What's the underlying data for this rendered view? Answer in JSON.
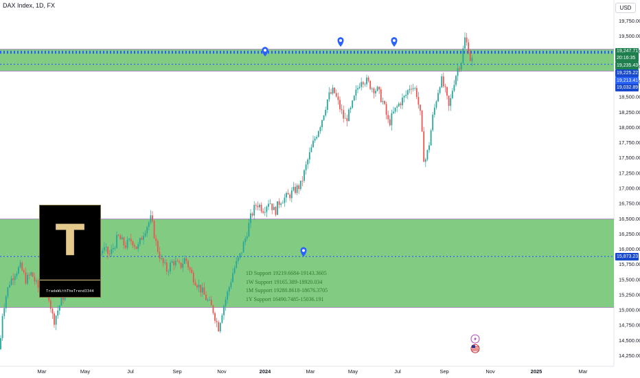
{
  "header": {
    "title": "DAX Index, 1D, FX",
    "currency": "USD"
  },
  "logo": {
    "letter": "T",
    "handle": "TradeWithTheTrend3344"
  },
  "support_notes": [
    "1D Support 19219.6684-19143.3605",
    "1W Support 19165.389-18920.034",
    "1M Support 19280.8618-18676.3705",
    "1Y Support 16490.7485-15036.191"
  ],
  "colors": {
    "zone_fill": "#6cc26c",
    "zone_border": "#a98bbd",
    "level_line": "#2962ff",
    "candle_up": "#26a69a",
    "candle_down": "#ef5350",
    "marker": "#2962ff",
    "tag_green": "#1e7e4e",
    "tag_blue": "#2962ff",
    "tag_navy": "#1848cc"
  },
  "chart_data": {
    "type": "candlestick",
    "title": "DAX Index, 1D, FX",
    "xlabel": "",
    "ylabel": "",
    "ylim": [
      14050,
      19900
    ],
    "x_ticks": [
      "Mar",
      "May",
      "Jul",
      "Sep",
      "Nov",
      "2024",
      "Mar",
      "May",
      "Jul",
      "Sep",
      "Nov",
      "2025",
      "Mar"
    ],
    "y_ticks": [
      14250,
      14500,
      14750,
      15000,
      15250,
      15500,
      15750,
      16000,
      16250,
      16500,
      16750,
      17000,
      17250,
      17500,
      17750,
      18000,
      18250,
      18500,
      18750,
      19000,
      19250,
      19500,
      19750
    ],
    "grid": false,
    "zones": [
      {
        "low": 18920,
        "high": 19280
      },
      {
        "low": 15036,
        "high": 16490
      }
    ],
    "levels": [
      19247.71,
      19235.43,
      19225.22,
      19213.41,
      19032.89,
      15873.23
    ],
    "price_tags": [
      {
        "label": "19,247.71",
        "sub": "20:16:35",
        "value": 19247.71,
        "color": "tag_green"
      },
      {
        "label": "19,235.43",
        "value": 19235.43,
        "color": "tag_green"
      },
      {
        "label": "19,225.22",
        "value": 19225.22,
        "color": "tag_navy"
      },
      {
        "label": "19,213.41",
        "value": 19213.41,
        "color": "tag_blue"
      },
      {
        "label": "19,032.89",
        "value": 19032.89,
        "color": "tag_navy"
      },
      {
        "label": "15,873.23",
        "value": 15873.23,
        "color": "tag_navy"
      }
    ],
    "path": [
      [
        0,
        14350
      ],
      [
        3,
        14900
      ],
      [
        8,
        15200
      ],
      [
        14,
        15450
      ],
      [
        22,
        15620
      ],
      [
        30,
        15700
      ],
      [
        38,
        15480
      ],
      [
        46,
        15600
      ],
      [
        55,
        15350
      ],
      [
        62,
        15500
      ],
      [
        70,
        15300
      ],
      [
        78,
        14800
      ],
      [
        86,
        15050
      ],
      [
        95,
        15300
      ],
      [
        103,
        15550
      ],
      [
        112,
        15800
      ],
      [
        120,
        15650
      ],
      [
        130,
        15900
      ],
      [
        140,
        15800
      ],
      [
        150,
        16000
      ],
      [
        160,
        15900
      ],
      [
        172,
        16200
      ],
      [
        182,
        16050
      ],
      [
        192,
        16150
      ],
      [
        200,
        16000
      ],
      [
        210,
        16300
      ],
      [
        220,
        16500
      ],
      [
        228,
        16050
      ],
      [
        235,
        15800
      ],
      [
        243,
        15650
      ],
      [
        252,
        15800
      ],
      [
        262,
        15700
      ],
      [
        270,
        15850
      ],
      [
        278,
        15600
      ],
      [
        286,
        15450
      ],
      [
        294,
        15300
      ],
      [
        302,
        15150
      ],
      [
        310,
        15000
      ],
      [
        318,
        14700
      ],
      [
        324,
        15000
      ],
      [
        332,
        15300
      ],
      [
        340,
        15650
      ],
      [
        350,
        15900
      ],
      [
        358,
        16200
      ],
      [
        366,
        16550
      ],
      [
        374,
        16750
      ],
      [
        384,
        16650
      ],
      [
        392,
        16800
      ],
      [
        400,
        16600
      ],
      [
        408,
        16800
      ],
      [
        418,
        16850
      ],
      [
        428,
        16950
      ],
      [
        438,
        17050
      ],
      [
        448,
        17450
      ],
      [
        458,
        17800
      ],
      [
        468,
        18100
      ],
      [
        478,
        18500
      ],
      [
        486,
        18600
      ],
      [
        494,
        18350
      ],
      [
        502,
        18100
      ],
      [
        510,
        18250
      ],
      [
        518,
        18550
      ],
      [
        526,
        18800
      ],
      [
        534,
        18750
      ],
      [
        542,
        18650
      ],
      [
        550,
        18600
      ],
      [
        558,
        18400
      ],
      [
        566,
        18050
      ],
      [
        574,
        18250
      ],
      [
        582,
        18400
      ],
      [
        590,
        18500
      ],
      [
        598,
        18700
      ],
      [
        606,
        18600
      ],
      [
        612,
        18200
      ],
      [
        618,
        17400
      ],
      [
        624,
        17650
      ],
      [
        630,
        18150
      ],
      [
        636,
        18500
      ],
      [
        642,
        18800
      ],
      [
        648,
        18600
      ],
      [
        654,
        18300
      ],
      [
        660,
        18700
      ],
      [
        666,
        18950
      ],
      [
        672,
        19100
      ],
      [
        677,
        19450
      ],
      [
        682,
        19300
      ],
      [
        686,
        19050
      ],
      [
        690,
        19200
      ]
    ],
    "markers": [
      {
        "x": 386,
        "value": 19240
      },
      {
        "x": 496,
        "value": 19400
      },
      {
        "x": 574,
        "value": 19400
      },
      {
        "x": 442,
        "value": 15950
      }
    ],
    "events": [
      {
        "icon": "lightning-icon",
        "x": 692,
        "value": 14520
      },
      {
        "icon": "us-flag-icon",
        "x": 692,
        "value": 14360
      }
    ]
  }
}
